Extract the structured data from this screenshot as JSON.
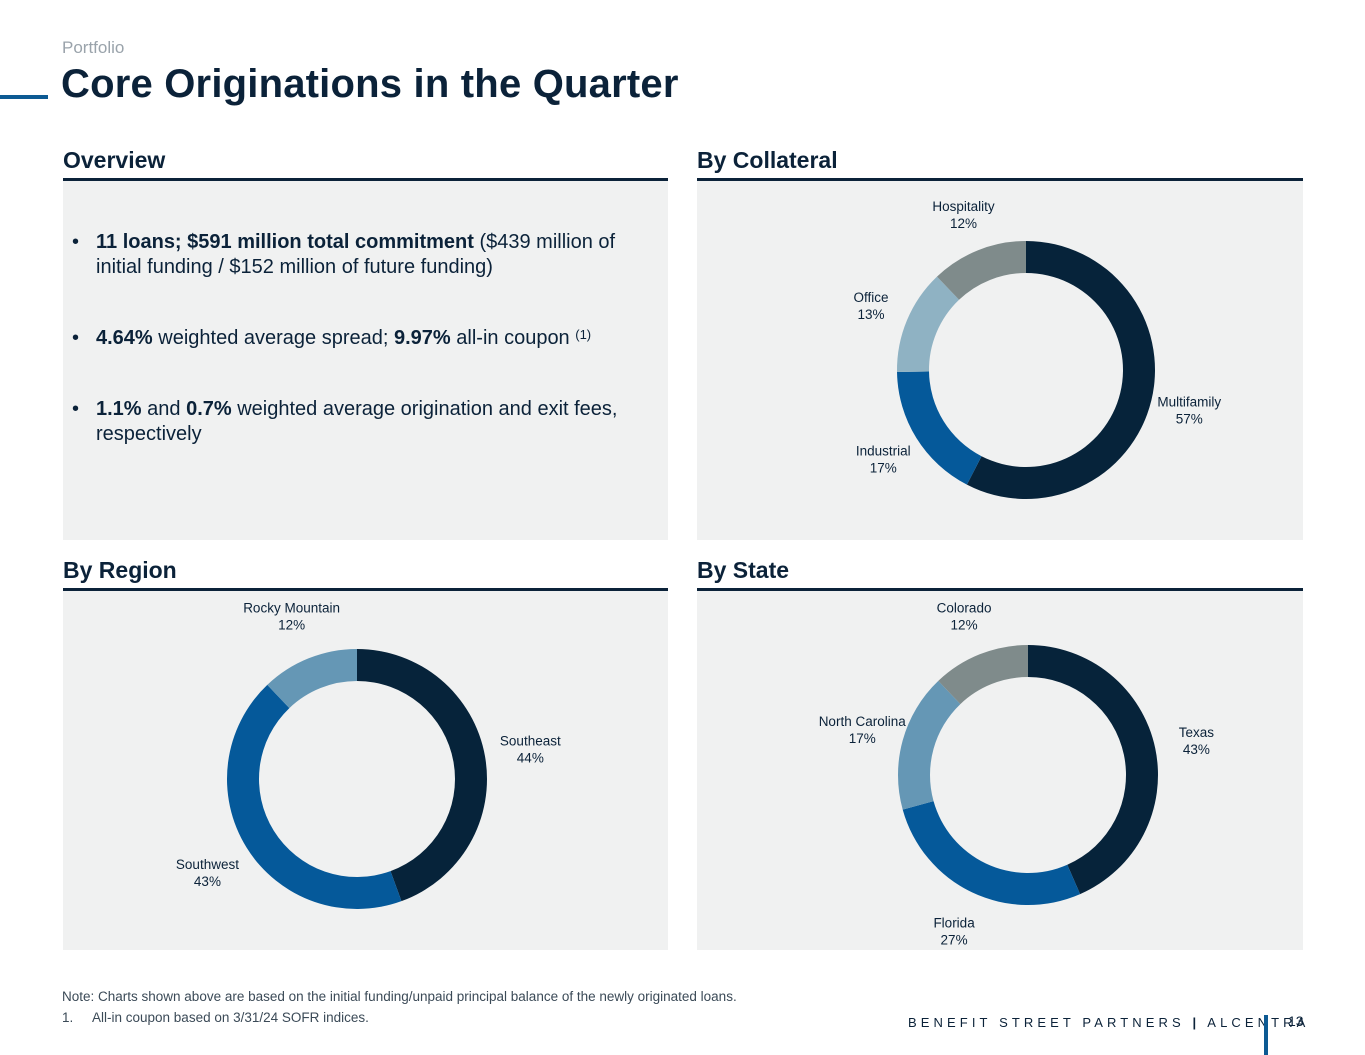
{
  "header": {
    "supertitle": "Portfolio",
    "title": "Core Originations in the Quarter"
  },
  "sections": {
    "overview": "Overview",
    "collateral": "By Collateral",
    "region": "By Region",
    "state": "By State"
  },
  "overview": {
    "b1_bold": "11 loans; $591 million total commitment",
    "b1_text": " ($439 million of initial funding / $152 million of future funding)",
    "b2_bold1": "4.64%",
    "b2_text1": " weighted average spread; ",
    "b2_bold2": "9.97%",
    "b2_text2": " all-in coupon ",
    "b2_sup": "(1)",
    "b3_bold1": "1.1%",
    "b3_text1": " and ",
    "b3_bold2": "0.7%",
    "b3_text2": " weighted average origination and exit fees, respectively"
  },
  "colors": {
    "navy": "#06233a",
    "blue": "#05599a",
    "steel": "#6597b5",
    "light": "#8fb2c3",
    "gray": "#7f8b8b",
    "panel": "#f0f1f1"
  },
  "chart_data": [
    {
      "id": "collateral",
      "type": "pie",
      "title": "By Collateral",
      "categories": [
        "Multifamily",
        "Industrial",
        "Office",
        "Hospitality"
      ],
      "values": [
        57,
        17,
        13,
        12
      ],
      "labels": [
        "57%",
        "17%",
        "13%",
        "12%"
      ],
      "colors": [
        "#06233a",
        "#05599a",
        "#8fb2c3",
        "#7f8b8b"
      ]
    },
    {
      "id": "region",
      "type": "pie",
      "title": "By Region",
      "categories": [
        "Southeast",
        "Southwest",
        "Rocky Mountain"
      ],
      "values": [
        44,
        43,
        12
      ],
      "labels": [
        "44%",
        "43%",
        "12%"
      ],
      "colors": [
        "#06233a",
        "#05599a",
        "#6597b5"
      ]
    },
    {
      "id": "state",
      "type": "pie",
      "title": "By State",
      "categories": [
        "Texas",
        "Florida",
        "North Carolina",
        "Colorado"
      ],
      "values": [
        43,
        27,
        17,
        12
      ],
      "labels": [
        "43%",
        "27%",
        "17%",
        "12%"
      ],
      "colors": [
        "#06233a",
        "#05599a",
        "#6597b5",
        "#7f8b8b"
      ]
    }
  ],
  "footer": {
    "note": "Note: Charts shown above are based on the initial funding/unpaid principal balance of the newly originated loans.",
    "footnote_num": "1.",
    "footnote_text": "All-in coupon based on 3/31/24 SOFR indices.",
    "brand_left": "BENEFIT STREET PARTNERS",
    "brand_sep": "|",
    "brand_right": "ALCENTRA",
    "page_number": "13"
  }
}
